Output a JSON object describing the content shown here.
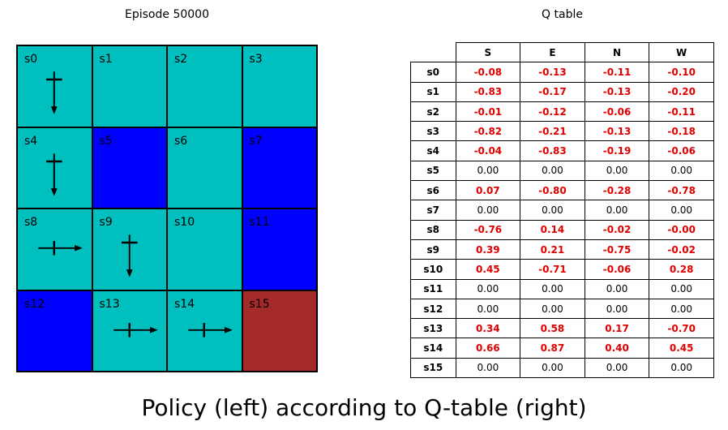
{
  "grid": {
    "title": "Episode 50000",
    "colors": {
      "frozen": "#00bfbf",
      "hole": "#0000ff",
      "goal": "#a52a2a"
    },
    "cells": [
      {
        "label": "s0",
        "type": "frozen",
        "arrow": "S"
      },
      {
        "label": "s1",
        "type": "frozen",
        "arrow": null
      },
      {
        "label": "s2",
        "type": "frozen",
        "arrow": null
      },
      {
        "label": "s3",
        "type": "frozen",
        "arrow": null
      },
      {
        "label": "s4",
        "type": "frozen",
        "arrow": "S"
      },
      {
        "label": "s5",
        "type": "hole",
        "arrow": null
      },
      {
        "label": "s6",
        "type": "frozen",
        "arrow": null
      },
      {
        "label": "s7",
        "type": "hole",
        "arrow": null
      },
      {
        "label": "s8",
        "type": "frozen",
        "arrow": "E"
      },
      {
        "label": "s9",
        "type": "frozen",
        "arrow": "S"
      },
      {
        "label": "s10",
        "type": "frozen",
        "arrow": null
      },
      {
        "label": "s11",
        "type": "hole",
        "arrow": null
      },
      {
        "label": "s12",
        "type": "hole",
        "arrow": null
      },
      {
        "label": "s13",
        "type": "frozen",
        "arrow": "E"
      },
      {
        "label": "s14",
        "type": "frozen",
        "arrow": "E"
      },
      {
        "label": "s15",
        "type": "goal",
        "arrow": null
      }
    ]
  },
  "qtable": {
    "title": "Q table",
    "columns": [
      "S",
      "E",
      "N",
      "W"
    ],
    "rows": [
      {
        "state": "s0",
        "values": [
          "-0.08",
          "-0.13",
          "-0.11",
          "-0.10"
        ],
        "highlight": true
      },
      {
        "state": "s1",
        "values": [
          "-0.83",
          "-0.17",
          "-0.13",
          "-0.20"
        ],
        "highlight": true
      },
      {
        "state": "s2",
        "values": [
          "-0.01",
          "-0.12",
          "-0.06",
          "-0.11"
        ],
        "highlight": true
      },
      {
        "state": "s3",
        "values": [
          "-0.82",
          "-0.21",
          "-0.13",
          "-0.18"
        ],
        "highlight": true
      },
      {
        "state": "s4",
        "values": [
          "-0.04",
          "-0.83",
          "-0.19",
          "-0.06"
        ],
        "highlight": true
      },
      {
        "state": "s5",
        "values": [
          "0.00",
          "0.00",
          "0.00",
          "0.00"
        ],
        "highlight": false
      },
      {
        "state": "s6",
        "values": [
          "0.07",
          "-0.80",
          "-0.28",
          "-0.78"
        ],
        "highlight": true
      },
      {
        "state": "s7",
        "values": [
          "0.00",
          "0.00",
          "0.00",
          "0.00"
        ],
        "highlight": false
      },
      {
        "state": "s8",
        "values": [
          "-0.76",
          "0.14",
          "-0.02",
          "-0.00"
        ],
        "highlight": true
      },
      {
        "state": "s9",
        "values": [
          "0.39",
          "0.21",
          "-0.75",
          "-0.02"
        ],
        "highlight": true
      },
      {
        "state": "s10",
        "values": [
          "0.45",
          "-0.71",
          "-0.06",
          "0.28"
        ],
        "highlight": true
      },
      {
        "state": "s11",
        "values": [
          "0.00",
          "0.00",
          "0.00",
          "0.00"
        ],
        "highlight": false
      },
      {
        "state": "s12",
        "values": [
          "0.00",
          "0.00",
          "0.00",
          "0.00"
        ],
        "highlight": false
      },
      {
        "state": "s13",
        "values": [
          "0.34",
          "0.58",
          "0.17",
          "-0.70"
        ],
        "highlight": true
      },
      {
        "state": "s14",
        "values": [
          "0.66",
          "0.87",
          "0.40",
          "0.45"
        ],
        "highlight": true
      },
      {
        "state": "s15",
        "values": [
          "0.00",
          "0.00",
          "0.00",
          "0.00"
        ],
        "highlight": false
      }
    ]
  },
  "caption": "Policy (left) according to Q-table (right)"
}
